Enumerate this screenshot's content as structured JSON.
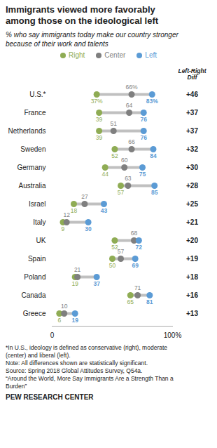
{
  "chart_data": {
    "type": "dumbbell",
    "title": "Immigrants viewed more favorably\namong those on the ideological left",
    "subtitle": "% who say immigrants today make our country stronger\nbecause of their work and talents",
    "categories": [
      "U.S.*",
      "France",
      "Netherlands",
      "Sweden",
      "Germany",
      "Australia",
      "Israel",
      "Italy",
      "UK",
      "Spain",
      "Poland",
      "Canada",
      "Greece"
    ],
    "series": [
      {
        "name": "Right",
        "color": "#8fac54",
        "values": [
          37,
          39,
          39,
          52,
          44,
          57,
          18,
          9,
          52,
          50,
          19,
          65,
          6
        ],
        "value_labels": [
          "37%",
          "39",
          "39",
          "52",
          "44",
          "57",
          "18",
          "9",
          "52",
          "50",
          "19",
          "65",
          "6"
        ]
      },
      {
        "name": "Center",
        "color": "#7f7f7f",
        "values": [
          66,
          64,
          51,
          66,
          60,
          63,
          27,
          12,
          68,
          57,
          21,
          71,
          10
        ],
        "value_labels": [
          "66%",
          "64",
          "51",
          "66",
          "60",
          "63",
          "27",
          "12",
          "68",
          "57",
          "21",
          "71",
          "10"
        ]
      },
      {
        "name": "Left",
        "color": "#5b9bd5",
        "values": [
          83,
          76,
          76,
          84,
          75,
          85,
          43,
          30,
          72,
          69,
          37,
          81,
          19
        ],
        "value_labels": [
          "83%",
          "76",
          "76",
          "84",
          "75",
          "85",
          "43",
          "30",
          "72",
          "69",
          "37",
          "81",
          "19"
        ]
      }
    ],
    "xlim": [
      0,
      100
    ],
    "xticks": [
      0,
      {
        "value": 100,
        "label": "100%"
      }
    ],
    "data_labels": true,
    "legend": "top",
    "grid": false,
    "diff_label": "Left-Right\nDiff",
    "diff_labels": [
      "+46",
      "+37",
      "+37",
      "+32",
      "+30",
      "+28",
      "+25",
      "+21",
      "+20",
      "+19",
      "+18",
      "+16",
      "+13"
    ],
    "footnote": "*In U.S., ideology is defined as conservative (right), moderate\n(center) and liberal (left).\nNote: All differences shown are statistically significant.\nSource: Spring 2018 Global Attitudes Survey, Q54a.\n“Around the World, More Say Immigrants Are a Strength Than a\nBurden”",
    "source": "PEW RESEARCH CENTER"
  }
}
